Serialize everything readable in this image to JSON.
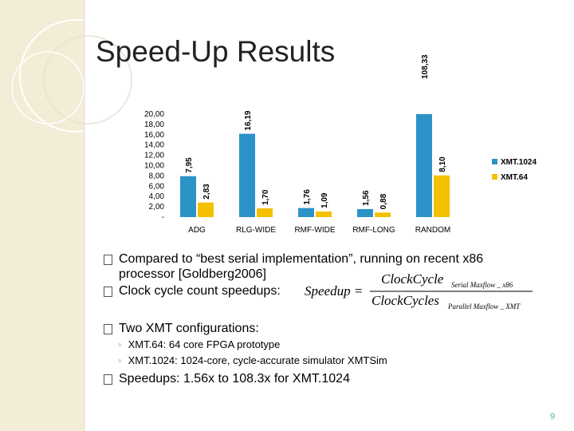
{
  "slide": {
    "title": "Speed-Up Results",
    "bullets": [
      "Compared to “best serial implementation”, running on recent x86 processor [Goldberg2006]",
      "Clock cycle count speedups:",
      "Two XMT configurations:",
      "Speedups: 1.56x to 108.3x for XMT.1024"
    ],
    "sub_bullets": [
      "XMT.64: 64 core FPGA prototype",
      "XMT.1024: 1024-core, cycle-accurate simulator XMTSim"
    ],
    "formula": {
      "lhs": "Speedup =",
      "numerator": "ClockCycle",
      "numerator_sub": "Serial Maxflow _ x86",
      "denominator": "ClockCycles",
      "denominator_sub": "Parallel Maxflow _ XMT"
    },
    "page_number": "9"
  },
  "chart_data": {
    "type": "bar",
    "categories": [
      "ADG",
      "RLG-WIDE",
      "RMF-WIDE",
      "RMF-LONG",
      "RANDOM"
    ],
    "series": [
      {
        "name": "XMT.1024",
        "color": "#2b93c8",
        "values": [
          7.95,
          16.19,
          1.76,
          1.56,
          108.33
        ],
        "value_labels": [
          "7,95",
          "16,19",
          "1,76",
          "1,56",
          "108,33"
        ]
      },
      {
        "name": "XMT.64",
        "color": "#f4c100",
        "values": [
          2.83,
          1.7,
          1.09,
          0.88,
          8.1
        ],
        "value_labels": [
          "2,83",
          "1,70",
          "1,09",
          "0,88",
          "8,10"
        ]
      }
    ],
    "ylim": [
      0,
      20
    ],
    "yticks": [
      {
        "value": 0,
        "label": "-"
      },
      {
        "value": 2,
        "label": "2,00"
      },
      {
        "value": 4,
        "label": "4,00"
      },
      {
        "value": 6,
        "label": "6,00"
      },
      {
        "value": 8,
        "label": "8,00"
      },
      {
        "value": 10,
        "label": "10,00"
      },
      {
        "value": 12,
        "label": "12,00"
      },
      {
        "value": 14,
        "label": "14,00"
      },
      {
        "value": 16,
        "label": "16,00"
      },
      {
        "value": 18,
        "label": "18,00"
      },
      {
        "value": 20,
        "label": "20,00"
      }
    ],
    "legend": "right"
  }
}
